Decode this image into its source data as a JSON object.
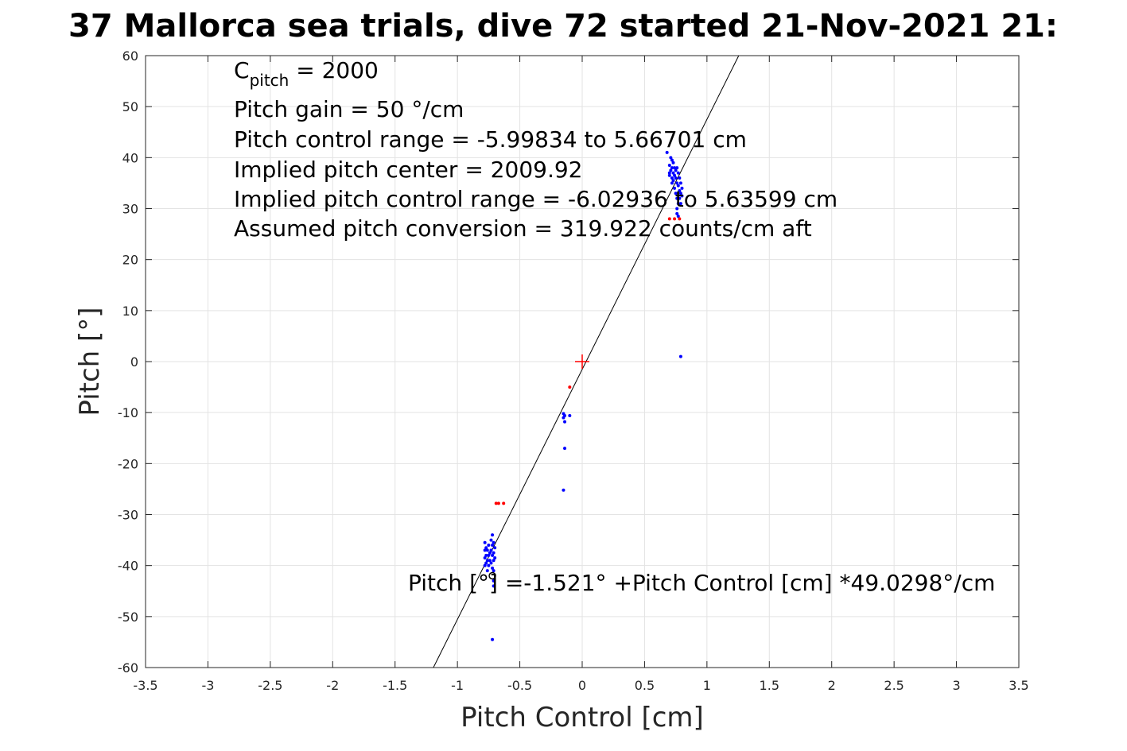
{
  "chart_data": {
    "type": "scatter",
    "title": "37 Mallorca sea trials, dive 72 started 21-Nov-2021 21:",
    "xlabel": "Pitch Control [cm]",
    "ylabel": "Pitch [°]",
    "xlim": [
      -3.5,
      3.5
    ],
    "ylim": [
      -60,
      60
    ],
    "xticks": [
      "-3.5",
      "-3",
      "-2.5",
      "-2",
      "-1.5",
      "-1",
      "-0.5",
      "0",
      "0.5",
      "1",
      "1.5",
      "2",
      "2.5",
      "3",
      "3.5"
    ],
    "yticks": [
      "60",
      "50",
      "40",
      "30",
      "20",
      "10",
      "0",
      "-10",
      "-20",
      "-30",
      "-40",
      "-50",
      "-60"
    ],
    "grid": true,
    "annotations": {
      "c_pitch_main": "C",
      "c_pitch_sub": "pitch",
      "c_pitch_value": " = 2000",
      "lines": [
        "Pitch gain = 50 °/cm",
        "Pitch control range = -5.99834 to 5.66701 cm",
        "Implied pitch center = 2009.92",
        "Implied pitch control range = -6.02936 to 5.63599 cm",
        "Assumed pitch conversion = 319.922 counts/cm aft"
      ],
      "fit_equation": "Pitch [°] =-1.521° +Pitch Control [cm] *49.0298°/cm"
    },
    "fit_line": {
      "intercept": -1.521,
      "slope": 49.0298,
      "color": "#000000"
    },
    "center_marker": {
      "x": 0,
      "y": 0,
      "color": "#ff0000"
    },
    "circle_marker": {
      "x": -0.72,
      "y": -42,
      "color": "#000000"
    },
    "series": [
      {
        "color": "#0000ff",
        "points": [
          [
            0.68,
            41
          ],
          [
            0.7,
            38.5
          ],
          [
            0.7,
            37
          ],
          [
            0.7,
            36.5
          ],
          [
            0.71,
            40
          ],
          [
            0.71,
            37.5
          ],
          [
            0.72,
            39.5
          ],
          [
            0.72,
            38
          ],
          [
            0.72,
            36
          ],
          [
            0.72,
            35
          ],
          [
            0.73,
            39
          ],
          [
            0.73,
            37
          ],
          [
            0.73,
            35.5
          ],
          [
            0.74,
            38
          ],
          [
            0.74,
            36.5
          ],
          [
            0.74,
            34
          ],
          [
            0.75,
            37.5
          ],
          [
            0.75,
            36
          ],
          [
            0.75,
            33
          ],
          [
            0.76,
            38
          ],
          [
            0.76,
            35
          ],
          [
            0.76,
            32
          ],
          [
            0.76,
            30
          ],
          [
            0.77,
            37
          ],
          [
            0.77,
            34.5
          ],
          [
            0.77,
            31
          ],
          [
            0.77,
            28.5
          ],
          [
            0.78,
            36
          ],
          [
            0.78,
            33.5
          ],
          [
            0.78,
            32
          ],
          [
            0.79,
            35
          ],
          [
            0.79,
            33
          ],
          [
            0.79,
            31
          ],
          [
            0.8,
            34
          ],
          [
            0.8,
            32.5
          ],
          [
            0.76,
            29
          ],
          [
            0.79,
            1
          ],
          [
            -0.78,
            -35.5
          ],
          [
            -0.78,
            -37
          ],
          [
            -0.78,
            -38.5
          ],
          [
            -0.78,
            -40
          ],
          [
            -0.77,
            -36.5
          ],
          [
            -0.77,
            -38
          ],
          [
            -0.77,
            -39.5
          ],
          [
            -0.76,
            -37
          ],
          [
            -0.76,
            -39
          ],
          [
            -0.76,
            -41
          ],
          [
            -0.75,
            -36
          ],
          [
            -0.75,
            -38
          ],
          [
            -0.75,
            -40
          ],
          [
            -0.74,
            -37.5
          ],
          [
            -0.74,
            -39
          ],
          [
            -0.73,
            -35
          ],
          [
            -0.73,
            -37
          ],
          [
            -0.73,
            -39.5
          ],
          [
            -0.72,
            -34
          ],
          [
            -0.72,
            -36
          ],
          [
            -0.72,
            -38
          ],
          [
            -0.72,
            -40.5
          ],
          [
            -0.71,
            -35.5
          ],
          [
            -0.71,
            -37.5
          ],
          [
            -0.71,
            -39
          ],
          [
            -0.71,
            -41
          ],
          [
            -0.71,
            -43
          ],
          [
            -0.71,
            -44
          ],
          [
            -0.7,
            -36.5
          ],
          [
            -0.7,
            -38.5
          ],
          [
            -0.72,
            -54.5
          ],
          [
            -0.15,
            -10.2
          ],
          [
            -0.15,
            -11
          ],
          [
            -0.14,
            -11.8
          ],
          [
            -0.14,
            -10.6
          ],
          [
            -0.1,
            -10.6
          ],
          [
            -0.14,
            -17
          ],
          [
            -0.15,
            -25.2
          ]
        ]
      },
      {
        "color": "#ff0000",
        "points": [
          [
            -0.1,
            -5
          ],
          [
            -0.69,
            -27.8
          ],
          [
            -0.67,
            -27.8
          ],
          [
            -0.63,
            -27.8
          ],
          [
            0.7,
            28
          ],
          [
            0.74,
            28
          ],
          [
            0.78,
            28
          ]
        ]
      }
    ]
  }
}
